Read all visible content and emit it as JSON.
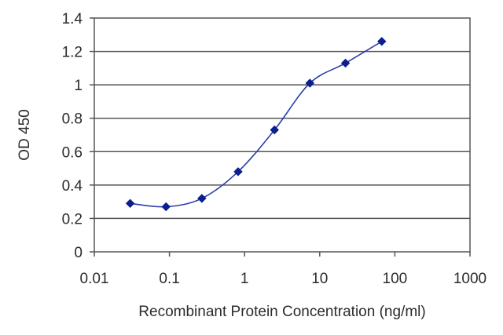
{
  "chart_data": {
    "type": "line",
    "title": "",
    "xlabel": "Recombinant Protein Concentration (ng/ml)",
    "ylabel": "OD 450",
    "xscale": "log",
    "xlim": [
      0.01,
      1000
    ],
    "ylim": [
      0,
      1.4
    ],
    "x_ticks": [
      "0.01",
      "0.1",
      "1",
      "10",
      "100",
      "1000"
    ],
    "y_ticks": [
      "0",
      "0.2",
      "0.4",
      "0.6",
      "0.8",
      "1",
      "1.2",
      "1.4"
    ],
    "grid": "horizontal",
    "legend": "none",
    "series": [
      {
        "color": "#2e3fa8",
        "marker": "diamond",
        "x": [
          0.03,
          0.09,
          0.27,
          0.82,
          2.5,
          7.4,
          22,
          67
        ],
        "y": [
          0.29,
          0.27,
          0.32,
          0.48,
          0.73,
          1.01,
          1.13,
          1.26
        ]
      }
    ]
  }
}
